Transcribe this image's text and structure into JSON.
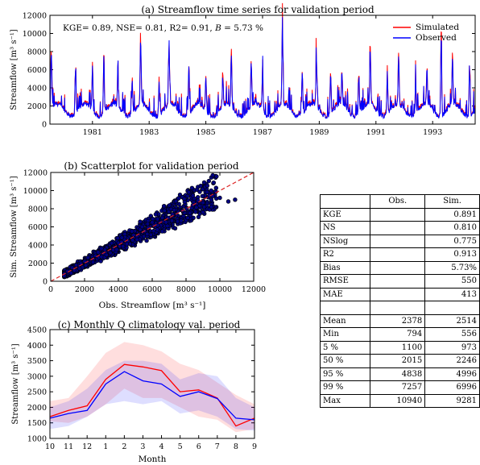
{
  "colors": {
    "simulated": "#ff0000",
    "observed": "#0000ff",
    "one_to_one": "#dd2222",
    "scatter_fill": "#000080"
  },
  "chart_data": [
    {
      "type": "line",
      "title": "(a) Streamflow time series for validation period",
      "ylabel": "Streamflow [m³ s⁻¹]",
      "annotation": "KGE= 0.89, NSE= 0.81, R2= 0.91, B = 5.73 %",
      "ylim": [
        0,
        12000
      ],
      "xlim": [
        1980.0,
        1995.0
      ],
      "x_ticks": [
        "1981",
        "1983",
        "1985",
        "1987",
        "1989",
        "1991",
        "1993"
      ],
      "y_ticks": [
        "0",
        "2000",
        "4000",
        "6000",
        "8000",
        "10000",
        "12000"
      ],
      "legend_position": "top-right",
      "series": [
        {
          "name": "Simulated",
          "color": "#ff0000"
        },
        {
          "name": "Observed",
          "color": "#0000ff"
        }
      ],
      "annual_peaks": [
        [
          1980.05,
          8000
        ],
        [
          1980.9,
          6500
        ],
        [
          1981.5,
          6500
        ],
        [
          1981.9,
          7000
        ],
        [
          1982.4,
          5000
        ],
        [
          1982.9,
          5600
        ],
        [
          1983.2,
          9000
        ],
        [
          1983.85,
          5500
        ],
        [
          1984.2,
          8000
        ],
        [
          1984.9,
          7000
        ],
        [
          1985.5,
          5500
        ],
        [
          1986.1,
          4800
        ],
        [
          1986.4,
          7400
        ],
        [
          1987.1,
          6500
        ],
        [
          1987.5,
          6200
        ],
        [
          1988.2,
          10900
        ],
        [
          1988.9,
          6500
        ],
        [
          1989.4,
          7000
        ],
        [
          1989.9,
          6000
        ],
        [
          1990.3,
          5200
        ],
        [
          1990.9,
          5800
        ],
        [
          1991.3,
          7500
        ],
        [
          1991.9,
          6000
        ],
        [
          1992.3,
          7200
        ],
        [
          1992.9,
          5200
        ],
        [
          1993.3,
          5600
        ],
        [
          1993.8,
          10000
        ],
        [
          1994.2,
          7000
        ],
        [
          1994.8,
          6500
        ]
      ]
    },
    {
      "type": "scatter",
      "title": "(b) Scatterplot for validation period",
      "xlabel": "Obs. Streamflow [m³ s⁻¹]",
      "ylabel": "Sim. Streamflow [m³ s⁻¹]",
      "xlim": [
        0,
        12000
      ],
      "ylim": [
        0,
        12000
      ],
      "x_ticks": [
        "0",
        "2000",
        "4000",
        "6000",
        "8000",
        "10000",
        "12000"
      ],
      "y_ticks": [
        "0",
        "2000",
        "4000",
        "6000",
        "8000",
        "10000",
        "12000"
      ],
      "one_to_one_line": true,
      "sample_points": [
        [
          800,
          600
        ],
        [
          1000,
          1100
        ],
        [
          1200,
          900
        ],
        [
          1500,
          1800
        ],
        [
          1700,
          1400
        ],
        [
          2000,
          2200
        ],
        [
          2200,
          2600
        ],
        [
          2500,
          2100
        ],
        [
          2800,
          3200
        ],
        [
          3000,
          3600
        ],
        [
          3300,
          2900
        ],
        [
          3600,
          4200
        ],
        [
          3900,
          3500
        ],
        [
          4200,
          4800
        ],
        [
          4500,
          4100
        ],
        [
          4800,
          5500
        ],
        [
          5100,
          4600
        ],
        [
          5400,
          6000
        ],
        [
          5700,
          5200
        ],
        [
          6000,
          6500
        ],
        [
          6300,
          5700
        ],
        [
          6600,
          7000
        ],
        [
          6900,
          6100
        ],
        [
          7200,
          7400
        ],
        [
          7500,
          6600
        ],
        [
          7800,
          7800
        ],
        [
          8100,
          7000
        ],
        [
          8400,
          8400
        ],
        [
          8700,
          8900
        ],
        [
          9000,
          7600
        ],
        [
          9500,
          8200
        ],
        [
          10000,
          9200
        ],
        [
          10500,
          8800
        ],
        [
          10900,
          9000
        ]
      ]
    },
    {
      "type": "area",
      "title": "(c) Monthly Q climatology val. period",
      "xlabel": "Month",
      "ylabel": "Streamflow [m³ s⁻¹]",
      "ylim": [
        1000,
        4500
      ],
      "categories": [
        "10",
        "11",
        "12",
        "1",
        "2",
        "3",
        "4",
        "5",
        "6",
        "7",
        "8",
        "9"
      ],
      "y_ticks": [
        "1000",
        "1500",
        "2000",
        "2500",
        "3000",
        "3500",
        "4000",
        "4500"
      ],
      "series": [
        {
          "name": "Simulated",
          "color": "#ff0000",
          "values": [
            1700,
            1900,
            2050,
            2900,
            3380,
            3300,
            3180,
            2500,
            2560,
            2300,
            1400,
            1650
          ],
          "lower": [
            1550,
            1500,
            1700,
            2100,
            2600,
            2300,
            2300,
            2000,
            1700,
            1600,
            1200,
            1300
          ],
          "upper": [
            2200,
            2300,
            3000,
            3750,
            4100,
            4000,
            3800,
            3400,
            3200,
            2800,
            2400,
            2100
          ]
        },
        {
          "name": "Observed",
          "color": "#0000ff",
          "values": [
            1650,
            1800,
            1900,
            2750,
            3150,
            2850,
            2750,
            2350,
            2500,
            2280,
            1650,
            1600
          ],
          "lower": [
            1300,
            1400,
            1700,
            2100,
            2200,
            2100,
            2200,
            1800,
            1900,
            1700,
            1300,
            1250
          ],
          "upper": [
            2000,
            2200,
            2600,
            3200,
            3500,
            3500,
            3400,
            2900,
            3100,
            3000,
            2300,
            2000
          ]
        }
      ]
    }
  ],
  "stats_table": {
    "headers": [
      "",
      "Obs.",
      "Sim."
    ],
    "rows": [
      {
        "label": "KGE",
        "obs": "",
        "sim": "0.891"
      },
      {
        "label": "NS",
        "obs": "",
        "sim": "0.810"
      },
      {
        "label": "NSlog",
        "obs": "",
        "sim": "0.775"
      },
      {
        "label": "R2",
        "obs": "",
        "sim": "0.913"
      },
      {
        "label": "Bias",
        "obs": "",
        "sim": "5.73%"
      },
      {
        "label": "RMSE",
        "obs": "",
        "sim": "550"
      },
      {
        "label": "MAE",
        "obs": "",
        "sim": "413"
      },
      {
        "label": "",
        "obs": "",
        "sim": ""
      },
      {
        "label": "Mean",
        "obs": "2378",
        "sim": "2514"
      },
      {
        "label": "Min",
        "obs": "794",
        "sim": "556"
      },
      {
        "label": "5 %",
        "obs": "1100",
        "sim": "973"
      },
      {
        "label": "50 %",
        "obs": "2015",
        "sim": "2246"
      },
      {
        "label": "95 %",
        "obs": "4838",
        "sim": "4996"
      },
      {
        "label": "99 %",
        "obs": "7257",
        "sim": "6996"
      },
      {
        "label": "Max",
        "obs": "10940",
        "sim": "9281"
      }
    ]
  }
}
